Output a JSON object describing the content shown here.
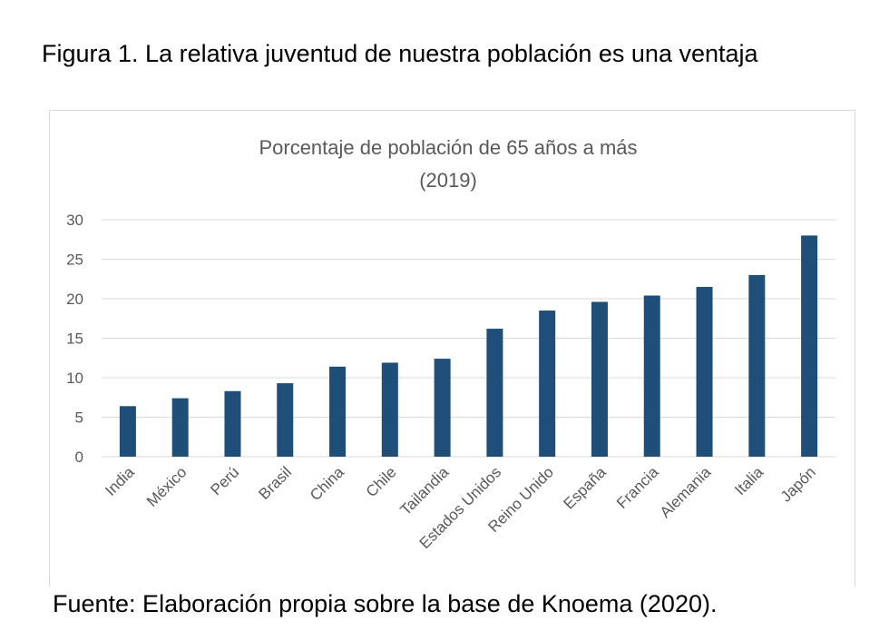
{
  "figure_title": "Figura 1. La relativa juventud de nuestra población es una ventaja",
  "source": "Fuente: Elaboración propia sobre la base de Knoema (2020).",
  "colors": {
    "bar": "#1f4e79",
    "grid": "#d9d9d9",
    "text": "#595959"
  },
  "chart_data": {
    "type": "bar",
    "title": "Porcentaje de población de 65 años a más",
    "subtitle": "(2019)",
    "categories": [
      "India",
      "México",
      "Perú",
      "Brasil",
      "China",
      "Chile",
      "Tailandia",
      "Estados Unidos",
      "Reino Unido",
      "España",
      "Francia",
      "Alemania",
      "Italia",
      "Japón"
    ],
    "values": [
      6.4,
      7.4,
      8.3,
      9.3,
      11.4,
      11.9,
      12.4,
      16.2,
      18.5,
      19.6,
      20.4,
      21.5,
      23.0,
      28.0
    ],
    "ylim": [
      0,
      30
    ],
    "yticks": [
      "0",
      "5",
      "10",
      "15",
      "20",
      "25",
      "30"
    ],
    "grid": true,
    "legend": "none"
  }
}
